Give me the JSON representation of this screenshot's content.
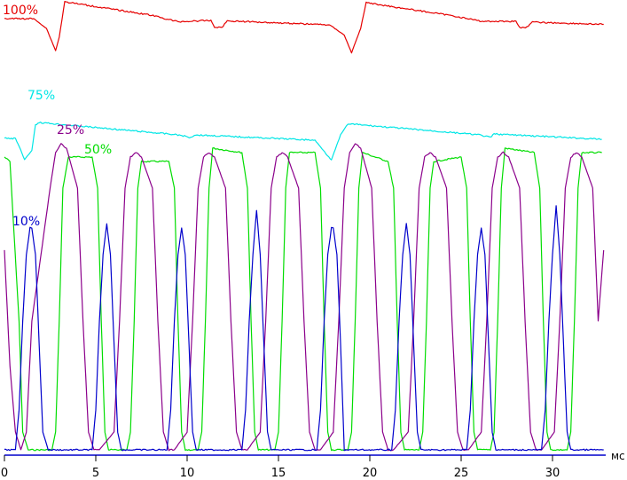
{
  "chart_data": {
    "type": "line",
    "xlabel": "",
    "ylabel": "",
    "x_unit": "мс",
    "xlim": [
      0,
      33
    ],
    "x_ticks": [
      0,
      5,
      10,
      15,
      20,
      25,
      30
    ],
    "grid": false,
    "legend": "none",
    "series": [
      {
        "name": "100%",
        "color": "#e60000",
        "x": [
          0,
          1.6,
          2.3,
          2.8,
          3.0,
          3.3,
          8.0,
          9.5,
          11.3,
          11.5,
          11.9,
          12.2,
          17.8,
          18.6,
          19.0,
          19.5,
          19.8,
          24.6,
          26.1,
          28.0,
          28.2,
          28.6,
          28.9,
          32.8
        ],
        "y": [
          98.2,
          98.2,
          96.0,
          91.0,
          94.0,
          102.0,
          99.0,
          97.5,
          97.8,
          96.3,
          96.2,
          97.7,
          96.8,
          94.5,
          90.5,
          96.0,
          101.8,
          98.8,
          97.6,
          97.6,
          96.2,
          96.3,
          97.4,
          96.9
        ]
      },
      {
        "name": "75%",
        "color": "#00e6e6",
        "x": [
          0,
          0.6,
          0.9,
          1.1,
          1.5,
          1.7,
          1.9,
          9.5,
          10.2,
          10.4,
          17.0,
          17.6,
          17.9,
          18.4,
          18.8,
          26.0,
          26.6,
          26.8,
          32.7
        ],
        "y": [
          71.2,
          71.2,
          68.5,
          66.4,
          68.5,
          74.3,
          74.8,
          72.0,
          71.4,
          72.0,
          70.8,
          67.8,
          66.4,
          72.0,
          74.5,
          72.0,
          71.4,
          72.2,
          71.0
        ]
      },
      {
        "name": "50%",
        "color": "#00dd00",
        "x": [
          0,
          0.3,
          0.8,
          1.0,
          1.3,
          1.4,
          2.6,
          2.8,
          3.0,
          3.2,
          3.5,
          4.8,
          5.1,
          5.3,
          5.5,
          5.7,
          5.9,
          6.7,
          6.9,
          7.1,
          7.3,
          7.5,
          9.0,
          9.3,
          9.5,
          9.7,
          9.9,
          10.1,
          10.6,
          10.8,
          11.0,
          11.2,
          11.4,
          13.0,
          13.3,
          13.5,
          13.7,
          13.9,
          14.1,
          14.8,
          15.0,
          15.2,
          15.4,
          15.6,
          17.0,
          17.3,
          17.5,
          17.7,
          17.9,
          18.1,
          18.8,
          19.0,
          19.2,
          19.4,
          19.6,
          21.0,
          21.3,
          21.5,
          21.7,
          21.9,
          22.1,
          22.7,
          22.9,
          23.1,
          23.3,
          23.5,
          25.0,
          25.3,
          25.5,
          25.7,
          25.9,
          26.1,
          26.6,
          26.8,
          27.0,
          27.2,
          27.4,
          29.0,
          29.3,
          29.5,
          29.7,
          29.9,
          30.1,
          30.8,
          31.0,
          31.2,
          31.4,
          31.6,
          32.7
        ],
        "y": [
          67,
          66,
          30,
          5,
          1,
          1,
          1,
          5,
          30,
          60,
          67,
          67,
          60,
          30,
          5,
          1,
          1,
          1,
          5,
          30,
          60,
          66,
          66,
          60,
          30,
          5,
          1,
          1,
          1,
          5,
          30,
          60,
          69,
          68,
          60,
          30,
          5,
          1,
          1,
          1,
          5,
          30,
          60,
          68,
          68,
          60,
          30,
          5,
          1,
          1,
          1,
          5,
          30,
          60,
          68,
          66,
          60,
          30,
          5,
          1,
          1,
          1,
          5,
          30,
          60,
          66,
          67,
          60,
          30,
          5,
          1,
          1,
          1,
          5,
          30,
          60,
          69,
          68,
          60,
          30,
          5,
          1,
          1,
          1,
          5,
          30,
          60,
          68,
          68
        ]
      },
      {
        "name": "25%",
        "color": "#8b008b",
        "x": [
          0,
          0.3,
          0.6,
          0.9,
          1.2,
          1.5,
          2.5,
          2.8,
          3.1,
          3.4,
          4.0,
          4.3,
          4.6,
          4.9,
          5.2,
          6.0,
          6.3,
          6.6,
          6.9,
          7.2,
          7.5,
          8.1,
          8.4,
          8.7,
          9.0,
          9.3,
          10.0,
          10.3,
          10.6,
          10.9,
          11.2,
          11.5,
          12.1,
          12.4,
          12.7,
          13.0,
          13.3,
          14.0,
          14.3,
          14.6,
          14.9,
          15.2,
          15.5,
          16.1,
          16.4,
          16.7,
          17.0,
          17.3,
          18.0,
          18.3,
          18.6,
          18.9,
          19.2,
          19.5,
          20.1,
          20.4,
          20.7,
          21.0,
          21.3,
          22.1,
          22.4,
          22.7,
          23.0,
          23.3,
          23.6,
          24.2,
          24.5,
          24.8,
          25.1,
          25.4,
          26.1,
          26.4,
          26.7,
          27.0,
          27.3,
          27.6,
          28.2,
          28.5,
          28.8,
          29.1,
          29.4,
          30.1,
          30.4,
          30.7,
          31.0,
          31.3,
          31.6,
          32.2,
          32.5,
          32.8
        ],
        "y": [
          46,
          20,
          5,
          1,
          5,
          30,
          60,
          68,
          70,
          69,
          60,
          30,
          5,
          1,
          1,
          5,
          30,
          60,
          67,
          68,
          67,
          60,
          30,
          5,
          1,
          1,
          5,
          30,
          60,
          67,
          68,
          67,
          60,
          30,
          5,
          1,
          1,
          5,
          30,
          60,
          67,
          68,
          67,
          60,
          30,
          5,
          1,
          1,
          5,
          30,
          60,
          68,
          70,
          69,
          60,
          30,
          5,
          1,
          1,
          5,
          30,
          60,
          67,
          68,
          67,
          60,
          30,
          5,
          1,
          1,
          5,
          30,
          60,
          67,
          68,
          67,
          60,
          30,
          5,
          1,
          1,
          5,
          30,
          60,
          67,
          68,
          67,
          60,
          30,
          46
        ]
      },
      {
        "name": "10%",
        "color": "#0000cc",
        "x": [
          0,
          0.6,
          0.8,
          1.0,
          1.2,
          1.4,
          1.5,
          1.7,
          1.9,
          2.1,
          2.4,
          4.8,
          5.0,
          5.2,
          5.4,
          5.6,
          5.8,
          6.0,
          6.2,
          6.4,
          8.9,
          9.1,
          9.3,
          9.5,
          9.7,
          9.9,
          10.1,
          10.3,
          10.5,
          13.0,
          13.2,
          13.4,
          13.6,
          13.8,
          14.0,
          14.2,
          14.4,
          14.6,
          17.1,
          17.3,
          17.5,
          17.7,
          17.9,
          18.0,
          18.2,
          18.4,
          18.6,
          21.2,
          21.4,
          21.6,
          21.8,
          22.0,
          22.2,
          22.4,
          22.6,
          22.8,
          25.3,
          25.5,
          25.7,
          25.9,
          26.1,
          26.3,
          26.5,
          26.7,
          26.9,
          29.4,
          29.6,
          29.8,
          30.0,
          30.2,
          30.4,
          30.6,
          30.8,
          31.0,
          32.8
        ],
        "y": [
          1,
          1,
          10,
          30,
          45,
          51,
          51,
          45,
          25,
          5,
          1,
          1,
          10,
          30,
          45,
          52,
          45,
          25,
          5,
          1,
          1,
          10,
          30,
          45,
          51,
          45,
          25,
          5,
          1,
          1,
          10,
          30,
          45,
          55,
          45,
          25,
          5,
          1,
          1,
          10,
          30,
          45,
          51,
          51,
          45,
          25,
          1,
          1,
          10,
          30,
          45,
          52,
          45,
          25,
          5,
          1,
          1,
          10,
          30,
          45,
          51,
          45,
          25,
          5,
          1,
          1,
          10,
          30,
          45,
          56,
          45,
          25,
          5,
          1,
          1
        ]
      }
    ]
  }
}
